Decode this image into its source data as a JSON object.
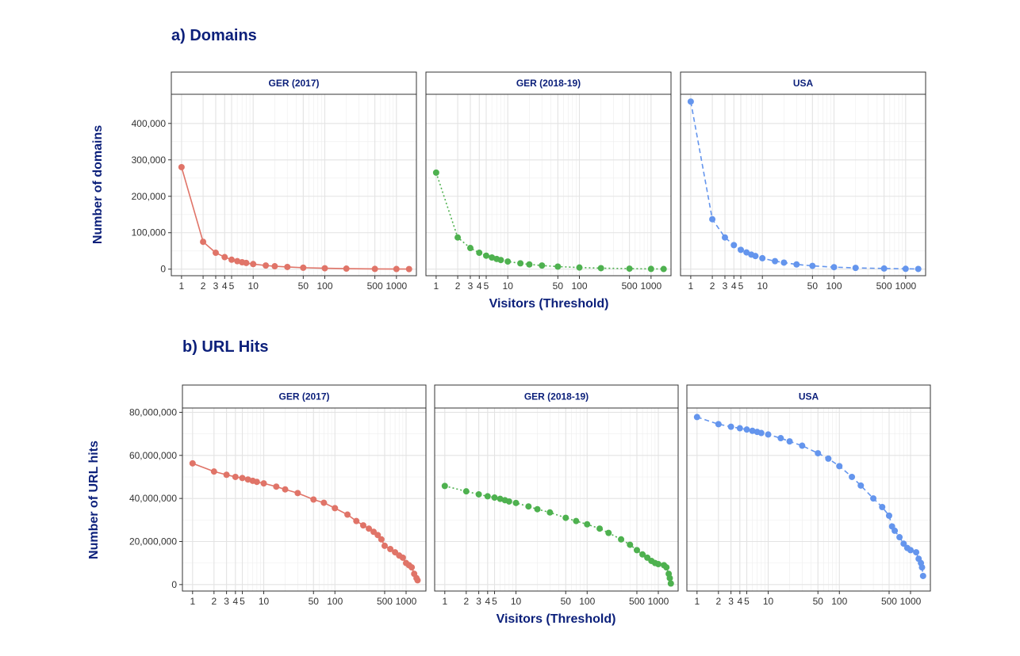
{
  "chart_data": [
    {
      "type": "line",
      "title": "a) Domains",
      "xlabel": "Visitors (Threshold)",
      "ylabel": "Number of domains",
      "x_scale": "log",
      "xlim": [
        0.72,
        1900
      ],
      "ylim": [
        -18000,
        480000
      ],
      "x_ticks": [
        1,
        2,
        3,
        4,
        5,
        10,
        50,
        100,
        500,
        1000
      ],
      "x_tick_labels": [
        "1",
        "2",
        "3",
        "4",
        "5",
        "10",
        "50",
        "100",
        "500",
        "1000"
      ],
      "y_ticks": [
        0,
        100000,
        200000,
        300000,
        400000
      ],
      "y_tick_labels": [
        "0",
        "100,000",
        "200,000",
        "300,000",
        "400,000"
      ],
      "grid": true,
      "legend": "none",
      "panels": [
        {
          "name": "GER (2017)",
          "color": "#e07468",
          "line_style": "solid",
          "points": [
            [
              1,
              280000
            ],
            [
              2,
              75000
            ],
            [
              3,
              45000
            ],
            [
              4,
              33000
            ],
            [
              5,
              26000
            ],
            [
              6,
              22000
            ],
            [
              7,
              19000
            ],
            [
              8,
              17000
            ],
            [
              10,
              14000
            ],
            [
              15,
              10000
            ],
            [
              20,
              8000
            ],
            [
              30,
              6000
            ],
            [
              50,
              4000
            ],
            [
              100,
              2500
            ],
            [
              200,
              1500
            ],
            [
              500,
              700
            ],
            [
              1000,
              350
            ],
            [
              1500,
              200
            ]
          ]
        },
        {
          "name": "GER (2018-19)",
          "color": "#4eb14f",
          "line_style": "dotted",
          "points": [
            [
              1,
              265000
            ],
            [
              2,
              87000
            ],
            [
              3,
              58000
            ],
            [
              4,
              45000
            ],
            [
              5,
              37000
            ],
            [
              6,
              32000
            ],
            [
              7,
              28000
            ],
            [
              8,
              25000
            ],
            [
              10,
              21000
            ],
            [
              15,
              16000
            ],
            [
              20,
              13000
            ],
            [
              30,
              10000
            ],
            [
              50,
              7000
            ],
            [
              100,
              4500
            ],
            [
              200,
              2800
            ],
            [
              500,
              1400
            ],
            [
              1000,
              700
            ],
            [
              1500,
              450
            ]
          ]
        },
        {
          "name": "USA",
          "color": "#6495ed",
          "line_style": "dashed",
          "points": [
            [
              1,
              460000
            ],
            [
              2,
              137000
            ],
            [
              3,
              87000
            ],
            [
              4,
              66000
            ],
            [
              5,
              53000
            ],
            [
              6,
              46000
            ],
            [
              7,
              40000
            ],
            [
              8,
              36000
            ],
            [
              10,
              30000
            ],
            [
              15,
              22000
            ],
            [
              20,
              18000
            ],
            [
              30,
              13000
            ],
            [
              50,
              9000
            ],
            [
              100,
              5500
            ],
            [
              200,
              3500
            ],
            [
              500,
              1800
            ],
            [
              1000,
              900
            ],
            [
              1500,
              600
            ]
          ]
        }
      ]
    },
    {
      "type": "line",
      "title": "b) URL Hits",
      "xlabel": "Visitors (Threshold)",
      "ylabel": "Number of URL hits",
      "x_scale": "log",
      "xlim": [
        0.72,
        1900
      ],
      "ylim": [
        -3000000,
        82000000
      ],
      "x_ticks": [
        1,
        2,
        3,
        4,
        5,
        10,
        50,
        100,
        500,
        1000
      ],
      "x_tick_labels": [
        "1",
        "2",
        "3",
        "4",
        "5",
        "10",
        "50",
        "100",
        "500",
        "1000"
      ],
      "y_ticks": [
        0,
        20000000,
        40000000,
        60000000,
        80000000
      ],
      "y_tick_labels": [
        "0",
        "20,000,000",
        "40,000,000",
        "60,000,000",
        "80,000,000"
      ],
      "grid": true,
      "legend": "none",
      "panels": [
        {
          "name": "GER (2017)",
          "color": "#e07468",
          "line_style": "solid",
          "points": [
            [
              1,
              56300000
            ],
            [
              2,
              52500000
            ],
            [
              3,
              51000000
            ],
            [
              4,
              50000000
            ],
            [
              5,
              49500000
            ],
            [
              6,
              48800000
            ],
            [
              7,
              48200000
            ],
            [
              8,
              47700000
            ],
            [
              10,
              47000000
            ],
            [
              15,
              45500000
            ],
            [
              20,
              44200000
            ],
            [
              30,
              42500000
            ],
            [
              50,
              39500000
            ],
            [
              70,
              38000000
            ],
            [
              100,
              35500000
            ],
            [
              150,
              32500000
            ],
            [
              200,
              29500000
            ],
            [
              250,
              27500000
            ],
            [
              300,
              26000000
            ],
            [
              350,
              24500000
            ],
            [
              400,
              23000000
            ],
            [
              450,
              21000000
            ],
            [
              500,
              18000000
            ],
            [
              600,
              16500000
            ],
            [
              700,
              15000000
            ],
            [
              800,
              13500000
            ],
            [
              900,
              12500000
            ],
            [
              1000,
              10000000
            ],
            [
              1100,
              9000000
            ],
            [
              1200,
              8000000
            ],
            [
              1300,
              5000000
            ],
            [
              1400,
              3000000
            ],
            [
              1450,
              2000000
            ]
          ]
        },
        {
          "name": "GER (2018-19)",
          "color": "#4eb14f",
          "line_style": "dotted",
          "points": [
            [
              1,
              45800000
            ],
            [
              2,
              43300000
            ],
            [
              3,
              41900000
            ],
            [
              4,
              41000000
            ],
            [
              5,
              40400000
            ],
            [
              6,
              39800000
            ],
            [
              7,
              39200000
            ],
            [
              8,
              38600000
            ],
            [
              10,
              37900000
            ],
            [
              15,
              36300000
            ],
            [
              20,
              35000000
            ],
            [
              30,
              33500000
            ],
            [
              50,
              31000000
            ],
            [
              70,
              29500000
            ],
            [
              100,
              28000000
            ],
            [
              150,
              26000000
            ],
            [
              200,
              24000000
            ],
            [
              300,
              21000000
            ],
            [
              400,
              18500000
            ],
            [
              500,
              16000000
            ],
            [
              600,
              14000000
            ],
            [
              700,
              12500000
            ],
            [
              800,
              11000000
            ],
            [
              900,
              10000000
            ],
            [
              1000,
              9500000
            ],
            [
              1200,
              9000000
            ],
            [
              1300,
              8000000
            ],
            [
              1400,
              5000000
            ],
            [
              1450,
              3000000
            ],
            [
              1500,
              500000
            ]
          ]
        },
        {
          "name": "USA",
          "color": "#6495ed",
          "line_style": "dashed",
          "points": [
            [
              1,
              77800000
            ],
            [
              2,
              74500000
            ],
            [
              3,
              73300000
            ],
            [
              4,
              72600000
            ],
            [
              5,
              72000000
            ],
            [
              6,
              71400000
            ],
            [
              7,
              70900000
            ],
            [
              8,
              70400000
            ],
            [
              10,
              69700000
            ],
            [
              15,
              68000000
            ],
            [
              20,
              66500000
            ],
            [
              30,
              64500000
            ],
            [
              50,
              61000000
            ],
            [
              70,
              58500000
            ],
            [
              100,
              55000000
            ],
            [
              150,
              50000000
            ],
            [
              200,
              46000000
            ],
            [
              300,
              40000000
            ],
            [
              400,
              36000000
            ],
            [
              500,
              32000000
            ],
            [
              550,
              27000000
            ],
            [
              600,
              25000000
            ],
            [
              700,
              22000000
            ],
            [
              800,
              19000000
            ],
            [
              900,
              17000000
            ],
            [
              1000,
              16000000
            ],
            [
              1200,
              15000000
            ],
            [
              1300,
              12000000
            ],
            [
              1400,
              10000000
            ],
            [
              1450,
              8000000
            ],
            [
              1500,
              4000000
            ]
          ]
        }
      ]
    }
  ]
}
